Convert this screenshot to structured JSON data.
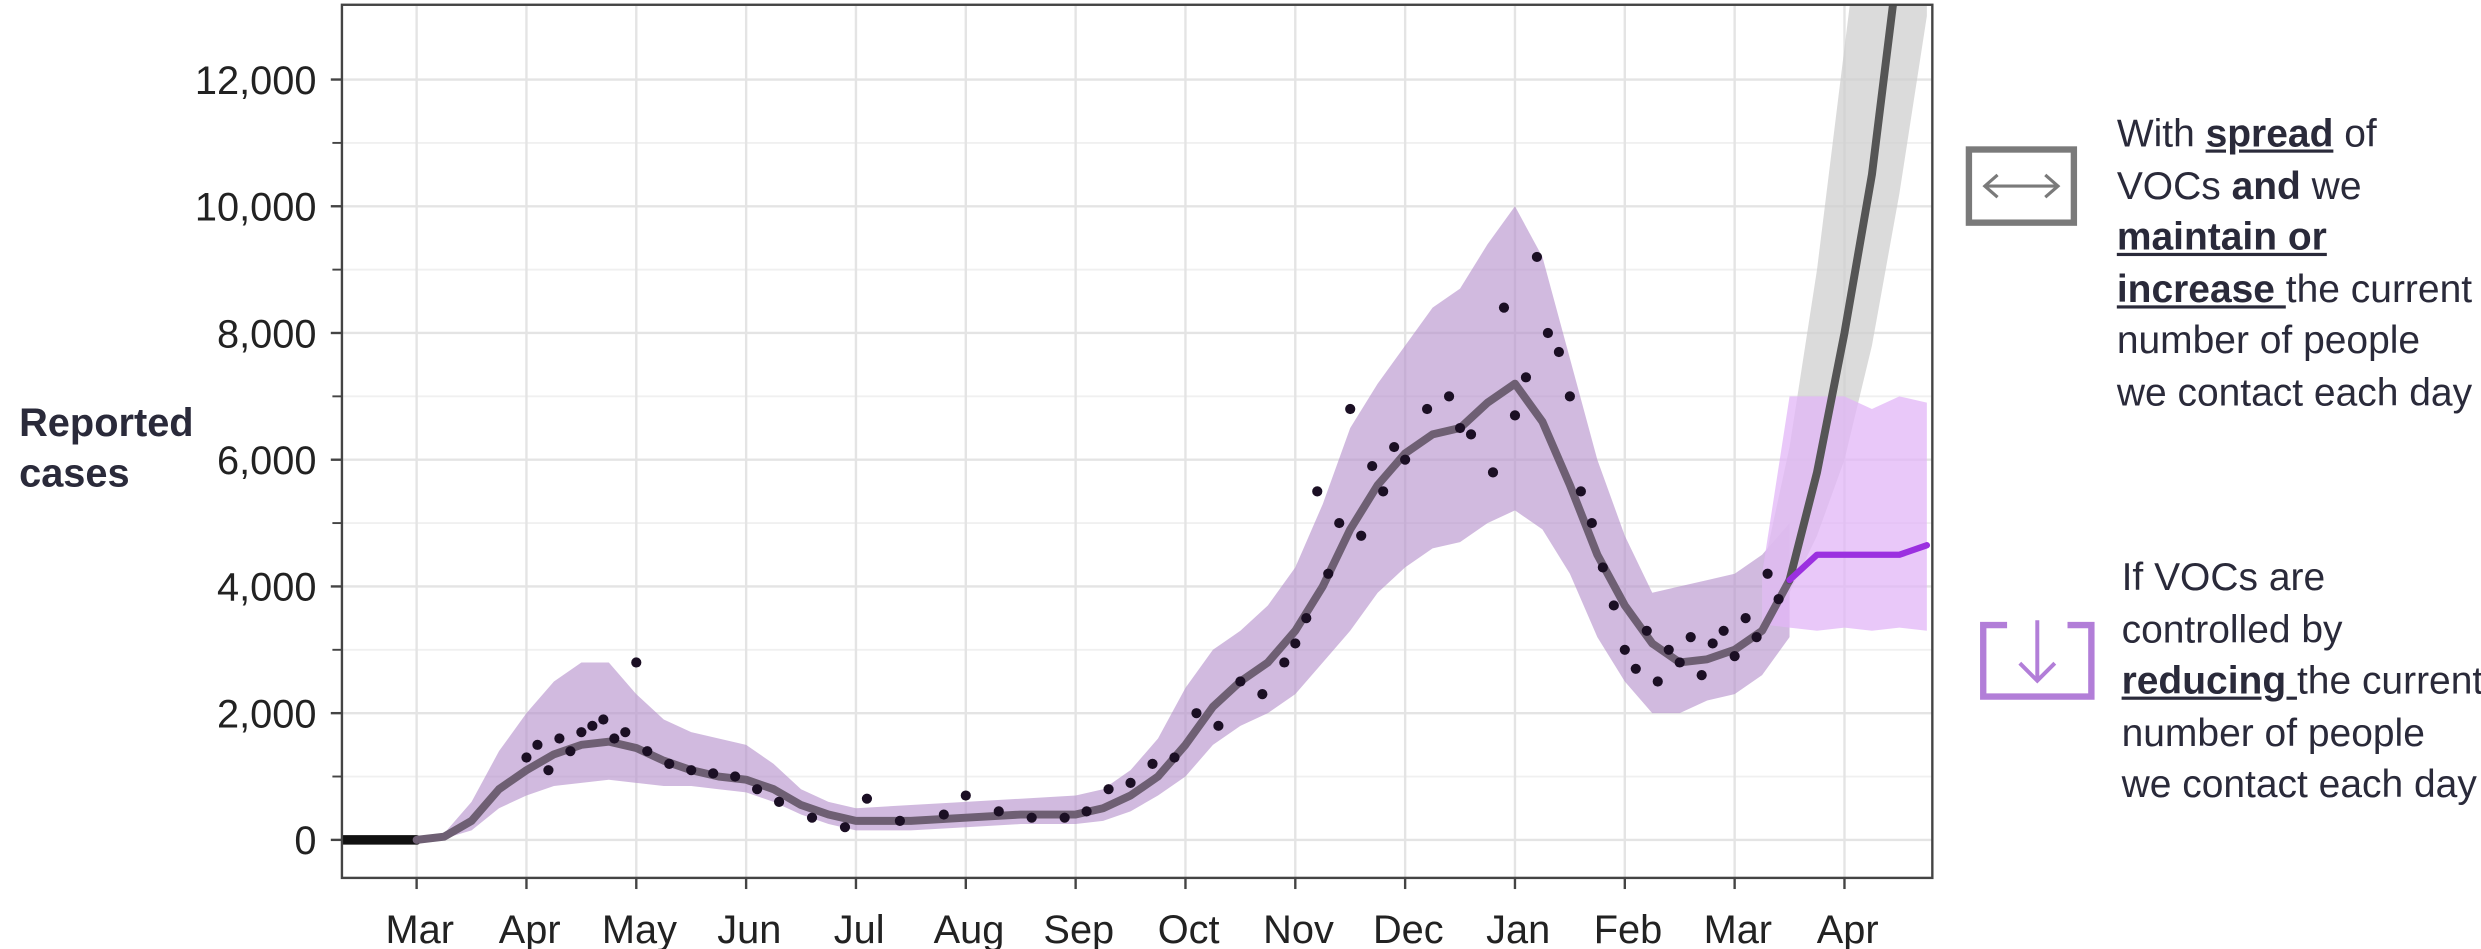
{
  "chart_data": {
    "type": "line",
    "ylabel": "Reported cases",
    "xlim": [
      -0.68,
      13.8
    ],
    "ylim": [
      -600,
      13180
    ],
    "xticks": [
      {
        "value": 0,
        "label": "Mar"
      },
      {
        "value": 1,
        "label": "Apr"
      },
      {
        "value": 2,
        "label": "May"
      },
      {
        "value": 3,
        "label": "Jun"
      },
      {
        "value": 4,
        "label": "Jul"
      },
      {
        "value": 5,
        "label": "Aug"
      },
      {
        "value": 6,
        "label": "Sep"
      },
      {
        "value": 7,
        "label": "Oct"
      },
      {
        "value": 8,
        "label": "Nov"
      },
      {
        "value": 9,
        "label": "Dec"
      },
      {
        "value": 10,
        "label": "Jan"
      },
      {
        "value": 11,
        "label": "Feb"
      },
      {
        "value": 12,
        "label": "Mar"
      },
      {
        "value": 13,
        "label": "Apr"
      }
    ],
    "yticks": [
      0,
      {
        "value": 2000,
        "label": "2,000"
      },
      {
        "value": 4000,
        "label": "4,000"
      },
      {
        "value": 6000,
        "label": "6,000"
      },
      {
        "value": 8000,
        "label": "8,000"
      },
      {
        "value": 10000,
        "label": "10,000"
      },
      {
        "value": 12000,
        "label": "12,000"
      }
    ],
    "yminorticks": [
      1000,
      3000,
      5000,
      7000,
      9000,
      11000
    ],
    "grid": true,
    "bands": [
      {
        "color": "#b58fcc",
        "opacity": 0.62,
        "x": [
          0,
          0.25,
          0.5,
          0.75,
          1,
          1.25,
          1.5,
          1.75,
          2,
          2.25,
          2.5,
          2.75,
          3,
          3.25,
          3.5,
          3.75,
          4,
          4.5,
          5,
          5.5,
          6,
          6.25,
          6.5,
          6.75,
          7,
          7.25,
          7.5,
          7.75,
          8,
          8.25,
          8.5,
          8.75,
          9,
          9.25,
          9.5,
          9.75,
          10,
          10.25,
          10.5,
          10.75,
          11,
          11.25,
          11.5,
          11.75,
          12,
          12.25,
          12.5
        ],
        "lower": [
          0,
          20,
          150,
          500,
          700,
          850,
          900,
          950,
          900,
          850,
          850,
          800,
          750,
          600,
          400,
          250,
          150,
          150,
          200,
          250,
          250,
          300,
          450,
          700,
          1000,
          1500,
          1800,
          2000,
          2300,
          2800,
          3300,
          3900,
          4300,
          4600,
          4700,
          5000,
          5200,
          4900,
          4200,
          3200,
          2500,
          2000,
          2000,
          2200,
          2300,
          2600,
          3200
        ],
        "upper": [
          0,
          100,
          600,
          1400,
          2000,
          2500,
          2800,
          2800,
          2300,
          1900,
          1700,
          1600,
          1500,
          1200,
          800,
          600,
          500,
          550,
          600,
          650,
          700,
          800,
          1100,
          1600,
          2400,
          3000,
          3300,
          3700,
          4300,
          5300,
          6500,
          7200,
          7800,
          8400,
          8700,
          9400,
          10000,
          9200,
          7600,
          6000,
          4800,
          3900,
          4000,
          4100,
          4200,
          4500,
          5000
        ]
      },
      {
        "color": "#cfcfcf",
        "opacity": 0.75,
        "x": [
          12.25,
          12.5,
          12.75,
          13,
          13.25,
          13.5,
          13.75
        ],
        "lower": [
          3400,
          3900,
          4800,
          6000,
          7800,
          10200,
          13000
        ],
        "upper": [
          4200,
          6200,
          9000,
          12500,
          16000,
          20000,
          24000
        ]
      },
      {
        "color": "#e2b5f7",
        "opacity": 0.75,
        "x": [
          12.25,
          12.5,
          12.75,
          13,
          13.25,
          13.5,
          13.75
        ],
        "lower": [
          3400,
          3350,
          3300,
          3350,
          3300,
          3350,
          3300
        ],
        "upper": [
          4200,
          7000,
          7000,
          7000,
          6800,
          7000,
          6900
        ]
      }
    ],
    "series": [
      {
        "color": "#111111",
        "line_width": 6,
        "x": [
          -0.68,
          0
        ],
        "values": [
          0,
          0
        ]
      },
      {
        "color": "#6e5f73",
        "line_width": 5,
        "x": [
          0,
          0.25,
          0.5,
          0.75,
          1,
          1.25,
          1.5,
          1.75,
          2,
          2.25,
          2.5,
          2.75,
          3,
          3.25,
          3.5,
          3.75,
          4,
          4.5,
          5,
          5.5,
          6,
          6.25,
          6.5,
          6.75,
          7,
          7.25,
          7.5,
          7.75,
          8,
          8.25,
          8.5,
          8.75,
          9,
          9.25,
          9.5,
          9.75,
          10,
          10.25,
          10.5,
          10.75,
          11,
          11.25,
          11.5,
          11.75,
          12,
          12.25,
          12.5
        ],
        "values": [
          0,
          50,
          300,
          800,
          1100,
          1350,
          1500,
          1550,
          1450,
          1250,
          1100,
          1000,
          950,
          800,
          550,
          400,
          300,
          300,
          350,
          400,
          400,
          500,
          700,
          1000,
          1500,
          2100,
          2500,
          2800,
          3300,
          4000,
          4900,
          5600,
          6100,
          6400,
          6500,
          6900,
          7200,
          6600,
          5600,
          4500,
          3700,
          3100,
          2800,
          2850,
          3000,
          3300,
          4100
        ]
      },
      {
        "color": "#555555",
        "line_width": 5,
        "x": [
          12.5,
          12.75,
          13,
          13.25,
          13.5
        ],
        "values": [
          4100,
          5800,
          8000,
          10500,
          14000
        ]
      },
      {
        "color": "#9b30e0",
        "line_width": 4,
        "x": [
          12.5,
          12.75,
          13,
          13.25,
          13.5,
          13.75
        ],
        "values": [
          4100,
          4500,
          4500,
          4500,
          4500,
          4650
        ]
      }
    ],
    "points": {
      "color": "#1b0f24",
      "x": [
        1.0,
        1.1,
        1.2,
        1.3,
        1.4,
        1.5,
        1.6,
        1.7,
        1.8,
        1.9,
        2.0,
        2.1,
        2.3,
        2.5,
        2.7,
        2.9,
        3.1,
        3.3,
        3.6,
        3.9,
        4.1,
        4.4,
        4.8,
        5.0,
        5.3,
        5.6,
        5.9,
        6.1,
        6.3,
        6.5,
        6.7,
        6.9,
        7.1,
        7.3,
        7.5,
        7.7,
        7.9,
        8.0,
        8.1,
        8.2,
        8.3,
        8.4,
        8.5,
        8.6,
        8.7,
        8.8,
        8.9,
        9.0,
        9.2,
        9.4,
        9.5,
        9.6,
        9.8,
        9.9,
        10.0,
        10.1,
        10.2,
        10.3,
        10.4,
        10.5,
        10.6,
        10.7,
        10.8,
        10.9,
        11.0,
        11.1,
        11.2,
        11.3,
        11.4,
        11.5,
        11.6,
        11.7,
        11.8,
        11.9,
        12.0,
        12.1,
        12.2,
        12.3,
        12.4
      ],
      "values": [
        1300,
        1500,
        1100,
        1600,
        1400,
        1700,
        1800,
        1900,
        1600,
        1700,
        2800,
        1400,
        1200,
        1100,
        1050,
        1000,
        800,
        600,
        350,
        200,
        650,
        300,
        400,
        700,
        450,
        350,
        350,
        450,
        800,
        900,
        1200,
        1300,
        2000,
        1800,
        2500,
        2300,
        2800,
        3100,
        3500,
        5500,
        4200,
        5000,
        6800,
        4800,
        5900,
        5500,
        6200,
        6000,
        6800,
        7000,
        6500,
        6400,
        5800,
        8400,
        6700,
        7300,
        9200,
        8000,
        7700,
        7000,
        5500,
        5000,
        4300,
        3700,
        3000,
        2700,
        3300,
        2500,
        3000,
        2800,
        3200,
        2600,
        3100,
        3300,
        2900,
        3500,
        3200,
        4200,
        3800
      ]
    }
  },
  "annotations": [
    {
      "segments": [
        {
          "text": "With "
        },
        {
          "text": "spread",
          "style": "bu"
        },
        {
          "text": " of VOCs "
        },
        {
          "text": "and",
          "style": "b"
        },
        {
          "text": " we "
        },
        {
          "text": "maintain or increase ",
          "style": "bu"
        },
        {
          "text": "the current number of people we contact each day"
        }
      ]
    },
    {
      "segments": [
        {
          "text": "If VOCs are controlled by "
        },
        {
          "text": "reducing ",
          "style": "bu"
        },
        {
          "text": " the current number of people we contact each day"
        }
      ]
    }
  ]
}
